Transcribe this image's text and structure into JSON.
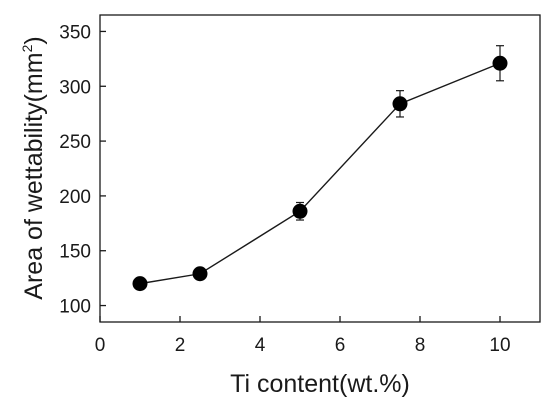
{
  "chart_data": {
    "type": "line",
    "xlabel": "Ti content(wt.%)",
    "ylabel": {
      "prefix": "Area of wettability(mm",
      "sup": "2",
      "suffix": ")"
    },
    "xlim": [
      0,
      11
    ],
    "ylim": [
      85,
      365
    ],
    "xticks": [
      0,
      2,
      4,
      6,
      8,
      10
    ],
    "yticks": [
      100,
      150,
      200,
      250,
      300,
      350
    ],
    "series": [
      {
        "x": [
          1,
          2.5,
          5,
          7.5,
          10
        ],
        "y": [
          120,
          129,
          186,
          284,
          321
        ],
        "error": [
          4,
          4,
          8,
          12,
          16
        ]
      }
    ],
    "grid": false,
    "legend": "none",
    "colors": {
      "line": "#1a1a1a",
      "marker": "#000000",
      "axis": "#1a1a1a"
    }
  }
}
